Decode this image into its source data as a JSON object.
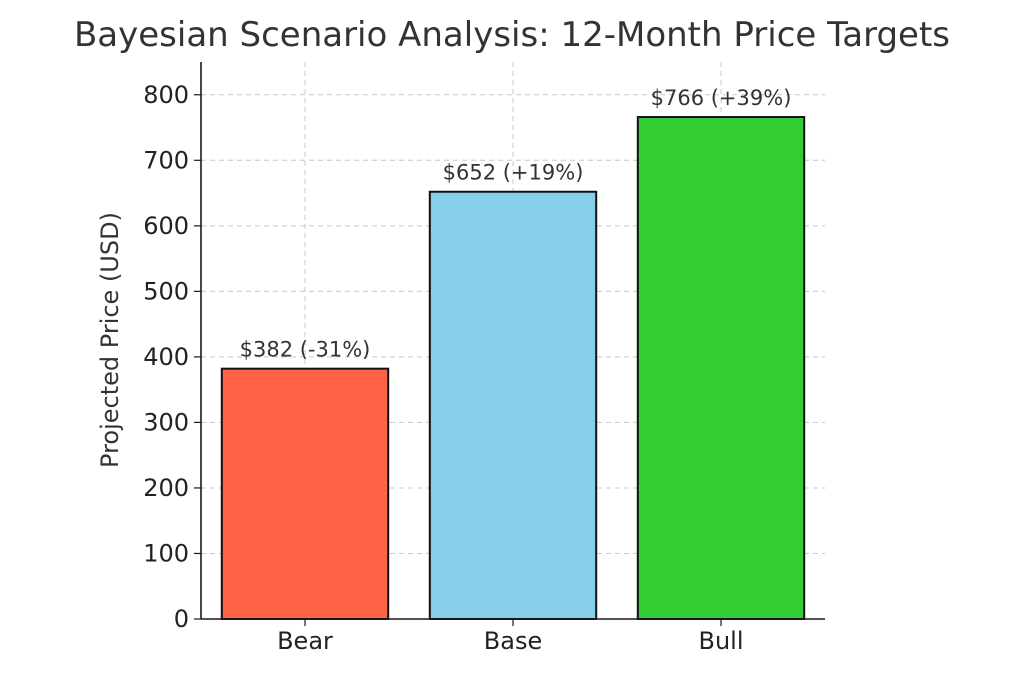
{
  "chart_data": {
    "type": "bar",
    "title": "Bayesian Scenario Analysis: 12-Month Price Targets",
    "xlabel": "",
    "ylabel": "Projected Price (USD)",
    "ylim": [
      0,
      850
    ],
    "yticks": [
      0,
      100,
      200,
      300,
      400,
      500,
      600,
      700,
      800
    ],
    "grid": true,
    "categories": [
      "Bear",
      "Base",
      "Bull"
    ],
    "values": [
      382,
      652,
      766
    ],
    "data_labels": [
      "$382 (-31%)",
      "$652 (+19%)",
      "$766 (+39%)"
    ],
    "colors": [
      "#FF6347",
      "#87CEEB",
      "#32CD32"
    ]
  }
}
